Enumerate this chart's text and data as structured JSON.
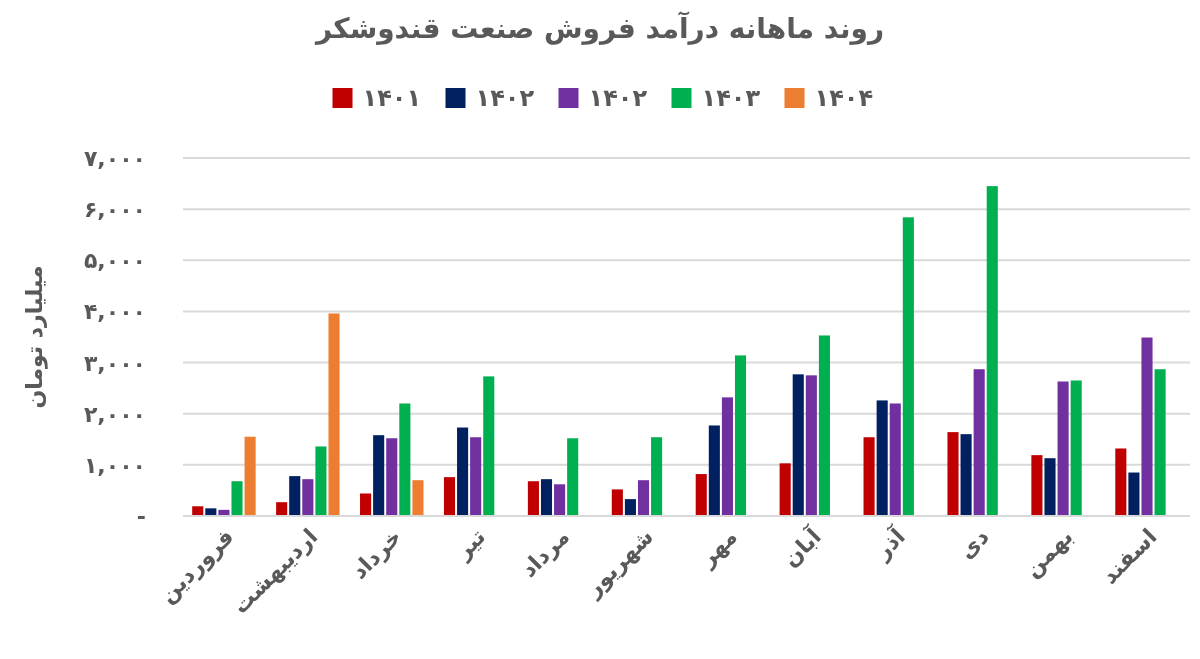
{
  "chart_data": {
    "type": "bar",
    "title": "روند ماهانه درآمد فروش صنعت قندوشکر",
    "ylabel": "میلیارد تومان",
    "categories": [
      "فروردین",
      "اردیبهشت",
      "خرداد",
      "تیر",
      "مرداد",
      "شهریور",
      "مهر",
      "آبان",
      "آذر",
      "دی",
      "بهمن",
      "اسفند"
    ],
    "series": [
      {
        "name": "۱۴۰۱",
        "color": "#c00000",
        "values": [
          190,
          270,
          440,
          760,
          680,
          520,
          820,
          1030,
          1540,
          1640,
          1190,
          1320
        ]
      },
      {
        "name": "۱۴۰۲",
        "color": "#002060",
        "values": [
          150,
          780,
          1580,
          1730,
          720,
          330,
          1770,
          2770,
          2260,
          1600,
          1130,
          850
        ]
      },
      {
        "name": "۱۴۰۲",
        "color": "#7030a0",
        "values": [
          120,
          720,
          1520,
          1540,
          620,
          700,
          2320,
          2750,
          2200,
          2870,
          2630,
          3490
        ]
      },
      {
        "name": "۱۴۰۳",
        "color": "#00b050",
        "values": [
          680,
          1360,
          2200,
          2730,
          1520,
          1540,
          3140,
          3530,
          5840,
          6450,
          2650,
          2870
        ]
      },
      {
        "name": "۱۴۰۴",
        "color": "#ed7d31",
        "values": [
          1550,
          3960,
          700,
          null,
          null,
          null,
          null,
          null,
          null,
          null,
          null,
          null
        ]
      }
    ],
    "ylim": [
      0,
      7000
    ],
    "yticks": [
      {
        "value": 0,
        "label": "-"
      },
      {
        "value": 1000,
        "label": "۱,۰۰۰"
      },
      {
        "value": 2000,
        "label": "۲,۰۰۰"
      },
      {
        "value": 3000,
        "label": "۳,۰۰۰"
      },
      {
        "value": 4000,
        "label": "۴,۰۰۰"
      },
      {
        "value": 5000,
        "label": "۵,۰۰۰"
      },
      {
        "value": 6000,
        "label": "۶,۰۰۰"
      },
      {
        "value": 7000,
        "label": "۷,۰۰۰"
      }
    ],
    "grid": "y",
    "legend": "top"
  }
}
